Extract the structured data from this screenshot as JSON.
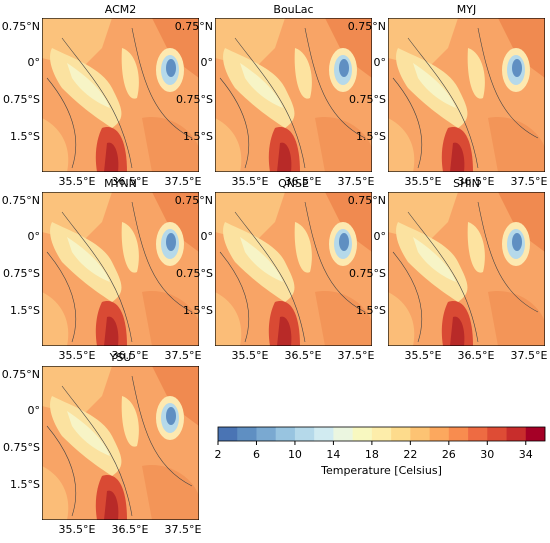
{
  "panels": [
    {
      "title": "ACM2"
    },
    {
      "title": "BouLac"
    },
    {
      "title": "MYJ"
    },
    {
      "title": "MYNN"
    },
    {
      "title": "QNSE"
    },
    {
      "title": "SHIN"
    },
    {
      "title": "YSU"
    }
  ],
  "lat_labels": [
    "0.75°N",
    "0°",
    "0.75°S",
    "1.5°S"
  ],
  "lon_labels": [
    "35.5°E",
    "36.5°E",
    "37.5°E"
  ],
  "colorbar": {
    "range": [
      2,
      36
    ],
    "ticks": [
      2,
      6,
      10,
      14,
      18,
      22,
      26,
      30,
      34
    ],
    "label": "Temperature [Celsius]",
    "colors": [
      "#4a74b4",
      "#5f8fc2",
      "#7aa9d1",
      "#98c4e0",
      "#b5d9ea",
      "#d1ebf1",
      "#ebf6e0",
      "#f8f8c0",
      "#fdedaa",
      "#fddb8c",
      "#fdc373",
      "#fca85e",
      "#f88c4f",
      "#ee6b42",
      "#de4c35",
      "#c82d2c",
      "#a50026"
    ]
  }
}
